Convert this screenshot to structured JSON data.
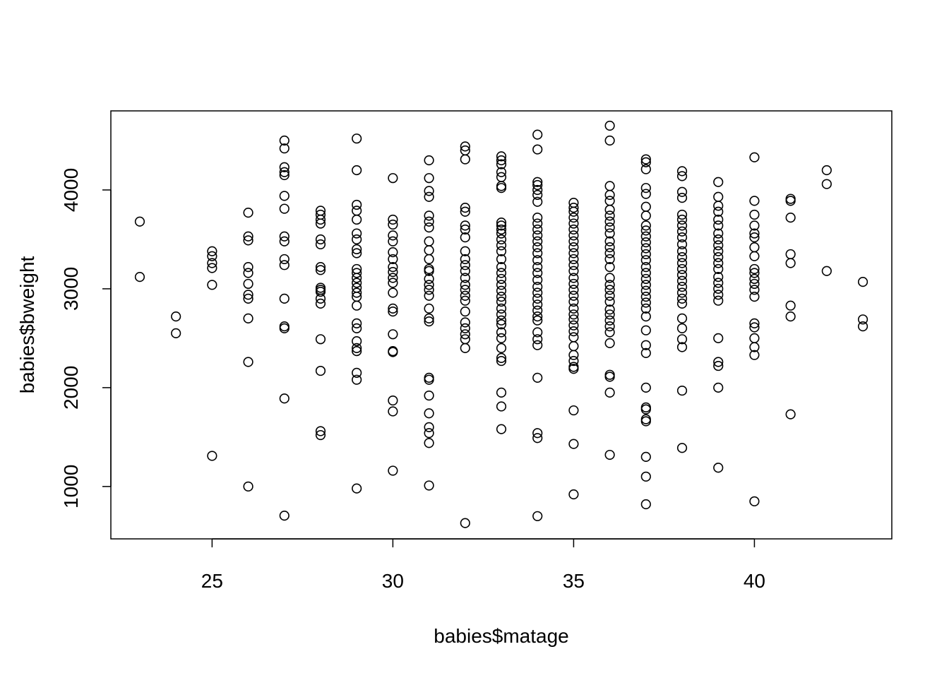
{
  "chart_data": {
    "type": "scatter",
    "title": "",
    "xlabel": "babies$matage",
    "ylabel": "babies$bweight",
    "xlim": [
      22.2,
      43.8
    ],
    "ylim": [
      470,
      4800
    ],
    "xticks": [
      25,
      30,
      35,
      40
    ],
    "yticks": [
      1000,
      2000,
      3000,
      4000
    ],
    "xtick_labels": [
      "25",
      "30",
      "35",
      "40"
    ],
    "ytick_labels": [
      "1000",
      "2000",
      "3000",
      "4000"
    ],
    "grid": false,
    "legend": "none",
    "marker": "open-circle",
    "points": [
      [
        23,
        3680
      ],
      [
        23,
        3120
      ],
      [
        24,
        2720
      ],
      [
        24,
        2550
      ],
      [
        25,
        3380
      ],
      [
        25,
        3330
      ],
      [
        25,
        3260
      ],
      [
        25,
        3210
      ],
      [
        25,
        3040
      ],
      [
        25,
        1310
      ],
      [
        26,
        3770
      ],
      [
        26,
        3530
      ],
      [
        26,
        3490
      ],
      [
        26,
        3220
      ],
      [
        26,
        3160
      ],
      [
        26,
        3050
      ],
      [
        26,
        2940
      ],
      [
        26,
        2900
      ],
      [
        26,
        2700
      ],
      [
        26,
        2260
      ],
      [
        26,
        1000
      ],
      [
        27,
        4500
      ],
      [
        27,
        4420
      ],
      [
        27,
        4230
      ],
      [
        27,
        4180
      ],
      [
        27,
        4150
      ],
      [
        27,
        3940
      ],
      [
        27,
        3810
      ],
      [
        27,
        3530
      ],
      [
        27,
        3480
      ],
      [
        27,
        3300
      ],
      [
        27,
        3240
      ],
      [
        27,
        2900
      ],
      [
        27,
        2620
      ],
      [
        27,
        2600
      ],
      [
        27,
        1890
      ],
      [
        27,
        705
      ],
      [
        28,
        3790
      ],
      [
        28,
        3750
      ],
      [
        28,
        3700
      ],
      [
        28,
        3660
      ],
      [
        28,
        3500
      ],
      [
        28,
        3450
      ],
      [
        28,
        3220
      ],
      [
        28,
        3190
      ],
      [
        28,
        3010
      ],
      [
        28,
        2990
      ],
      [
        28,
        2970
      ],
      [
        28,
        2900
      ],
      [
        28,
        2850
      ],
      [
        28,
        2490
      ],
      [
        28,
        2170
      ],
      [
        28,
        1560
      ],
      [
        28,
        1520
      ],
      [
        29,
        4520
      ],
      [
        29,
        4200
      ],
      [
        29,
        3850
      ],
      [
        29,
        3790
      ],
      [
        29,
        3700
      ],
      [
        29,
        3560
      ],
      [
        29,
        3500
      ],
      [
        29,
        3400
      ],
      [
        29,
        3360
      ],
      [
        29,
        3200
      ],
      [
        29,
        3160
      ],
      [
        29,
        3110
      ],
      [
        29,
        3060
      ],
      [
        29,
        3010
      ],
      [
        29,
        2960
      ],
      [
        29,
        2920
      ],
      [
        29,
        2830
      ],
      [
        29,
        2650
      ],
      [
        29,
        2600
      ],
      [
        29,
        2470
      ],
      [
        29,
        2400
      ],
      [
        29,
        2370
      ],
      [
        29,
        2150
      ],
      [
        29,
        2080
      ],
      [
        29,
        980
      ],
      [
        30,
        4120
      ],
      [
        30,
        3700
      ],
      [
        30,
        3650
      ],
      [
        30,
        3540
      ],
      [
        30,
        3480
      ],
      [
        30,
        3370
      ],
      [
        30,
        3300
      ],
      [
        30,
        3220
      ],
      [
        30,
        3170
      ],
      [
        30,
        3110
      ],
      [
        30,
        3060
      ],
      [
        30,
        2960
      ],
      [
        30,
        2800
      ],
      [
        30,
        2770
      ],
      [
        30,
        2540
      ],
      [
        30,
        2370
      ],
      [
        30,
        2360
      ],
      [
        30,
        1870
      ],
      [
        30,
        1760
      ],
      [
        30,
        1160
      ],
      [
        31,
        4300
      ],
      [
        31,
        4120
      ],
      [
        31,
        3990
      ],
      [
        31,
        3930
      ],
      [
        31,
        3740
      ],
      [
        31,
        3680
      ],
      [
        31,
        3620
      ],
      [
        31,
        3480
      ],
      [
        31,
        3390
      ],
      [
        31,
        3300
      ],
      [
        31,
        3200
      ],
      [
        31,
        3180
      ],
      [
        31,
        3100
      ],
      [
        31,
        3040
      ],
      [
        31,
        2990
      ],
      [
        31,
        2930
      ],
      [
        31,
        2800
      ],
      [
        31,
        2700
      ],
      [
        31,
        2670
      ],
      [
        31,
        2100
      ],
      [
        31,
        2080
      ],
      [
        31,
        1920
      ],
      [
        31,
        1740
      ],
      [
        31,
        1600
      ],
      [
        31,
        1540
      ],
      [
        31,
        1440
      ],
      [
        31,
        1010
      ],
      [
        32,
        4440
      ],
      [
        32,
        4400
      ],
      [
        32,
        4310
      ],
      [
        32,
        3820
      ],
      [
        32,
        3780
      ],
      [
        32,
        3640
      ],
      [
        32,
        3600
      ],
      [
        32,
        3520
      ],
      [
        32,
        3380
      ],
      [
        32,
        3300
      ],
      [
        32,
        3240
      ],
      [
        32,
        3180
      ],
      [
        32,
        3110
      ],
      [
        32,
        3040
      ],
      [
        32,
        2990
      ],
      [
        32,
        2930
      ],
      [
        32,
        2880
      ],
      [
        32,
        2770
      ],
      [
        32,
        2660
      ],
      [
        32,
        2600
      ],
      [
        32,
        2540
      ],
      [
        32,
        2490
      ],
      [
        32,
        2400
      ],
      [
        32,
        630
      ],
      [
        33,
        4340
      ],
      [
        33,
        4300
      ],
      [
        33,
        4260
      ],
      [
        33,
        4180
      ],
      [
        33,
        4130
      ],
      [
        33,
        4040
      ],
      [
        33,
        4020
      ],
      [
        33,
        3670
      ],
      [
        33,
        3640
      ],
      [
        33,
        3600
      ],
      [
        33,
        3560
      ],
      [
        33,
        3500
      ],
      [
        33,
        3440
      ],
      [
        33,
        3380
      ],
      [
        33,
        3300
      ],
      [
        33,
        3220
      ],
      [
        33,
        3160
      ],
      [
        33,
        3100
      ],
      [
        33,
        3040
      ],
      [
        33,
        2980
      ],
      [
        33,
        2920
      ],
      [
        33,
        2870
      ],
      [
        33,
        2800
      ],
      [
        33,
        2740
      ],
      [
        33,
        2680
      ],
      [
        33,
        2640
      ],
      [
        33,
        2560
      ],
      [
        33,
        2500
      ],
      [
        33,
        2400
      ],
      [
        33,
        2300
      ],
      [
        33,
        2270
      ],
      [
        33,
        1950
      ],
      [
        33,
        1810
      ],
      [
        33,
        1580
      ],
      [
        34,
        4560
      ],
      [
        34,
        4410
      ],
      [
        34,
        4080
      ],
      [
        34,
        4050
      ],
      [
        34,
        4000
      ],
      [
        34,
        3950
      ],
      [
        34,
        3880
      ],
      [
        34,
        3720
      ],
      [
        34,
        3660
      ],
      [
        34,
        3600
      ],
      [
        34,
        3540
      ],
      [
        34,
        3480
      ],
      [
        34,
        3420
      ],
      [
        34,
        3360
      ],
      [
        34,
        3290
      ],
      [
        34,
        3220
      ],
      [
        34,
        3160
      ],
      [
        34,
        3090
      ],
      [
        34,
        3020
      ],
      [
        34,
        2960
      ],
      [
        34,
        2900
      ],
      [
        34,
        2840
      ],
      [
        34,
        2780
      ],
      [
        34,
        2720
      ],
      [
        34,
        2680
      ],
      [
        34,
        2560
      ],
      [
        34,
        2490
      ],
      [
        34,
        2430
      ],
      [
        34,
        2100
      ],
      [
        34,
        1540
      ],
      [
        34,
        1490
      ],
      [
        34,
        700
      ],
      [
        35,
        3870
      ],
      [
        35,
        3820
      ],
      [
        35,
        3780
      ],
      [
        35,
        3720
      ],
      [
        35,
        3660
      ],
      [
        35,
        3600
      ],
      [
        35,
        3540
      ],
      [
        35,
        3480
      ],
      [
        35,
        3420
      ],
      [
        35,
        3360
      ],
      [
        35,
        3300
      ],
      [
        35,
        3240
      ],
      [
        35,
        3180
      ],
      [
        35,
        3110
      ],
      [
        35,
        3050
      ],
      [
        35,
        2990
      ],
      [
        35,
        2930
      ],
      [
        35,
        2870
      ],
      [
        35,
        2800
      ],
      [
        35,
        2740
      ],
      [
        35,
        2690
      ],
      [
        35,
        2630
      ],
      [
        35,
        2570
      ],
      [
        35,
        2510
      ],
      [
        35,
        2420
      ],
      [
        35,
        2330
      ],
      [
        35,
        2270
      ],
      [
        35,
        2210
      ],
      [
        35,
        2190
      ],
      [
        35,
        1770
      ],
      [
        35,
        1430
      ],
      [
        35,
        920
      ],
      [
        36,
        4650
      ],
      [
        36,
        4500
      ],
      [
        36,
        4040
      ],
      [
        36,
        3950
      ],
      [
        36,
        3890
      ],
      [
        36,
        3800
      ],
      [
        36,
        3740
      ],
      [
        36,
        3680
      ],
      [
        36,
        3620
      ],
      [
        36,
        3560
      ],
      [
        36,
        3480
      ],
      [
        36,
        3420
      ],
      [
        36,
        3360
      ],
      [
        36,
        3300
      ],
      [
        36,
        3220
      ],
      [
        36,
        3110
      ],
      [
        36,
        3040
      ],
      [
        36,
        2990
      ],
      [
        36,
        2930
      ],
      [
        36,
        2870
      ],
      [
        36,
        2790
      ],
      [
        36,
        2740
      ],
      [
        36,
        2680
      ],
      [
        36,
        2620
      ],
      [
        36,
        2560
      ],
      [
        36,
        2450
      ],
      [
        36,
        2130
      ],
      [
        36,
        2110
      ],
      [
        36,
        1950
      ],
      [
        36,
        1320
      ],
      [
        37,
        4310
      ],
      [
        37,
        4280
      ],
      [
        37,
        4210
      ],
      [
        37,
        4020
      ],
      [
        37,
        3960
      ],
      [
        37,
        3830
      ],
      [
        37,
        3740
      ],
      [
        37,
        3640
      ],
      [
        37,
        3590
      ],
      [
        37,
        3530
      ],
      [
        37,
        3470
      ],
      [
        37,
        3410
      ],
      [
        37,
        3350
      ],
      [
        37,
        3290
      ],
      [
        37,
        3220
      ],
      [
        37,
        3160
      ],
      [
        37,
        3100
      ],
      [
        37,
        3040
      ],
      [
        37,
        2980
      ],
      [
        37,
        2920
      ],
      [
        37,
        2860
      ],
      [
        37,
        2800
      ],
      [
        37,
        2720
      ],
      [
        37,
        2580
      ],
      [
        37,
        2430
      ],
      [
        37,
        2350
      ],
      [
        37,
        2000
      ],
      [
        37,
        1800
      ],
      [
        37,
        1780
      ],
      [
        37,
        1680
      ],
      [
        37,
        1660
      ],
      [
        37,
        1300
      ],
      [
        37,
        1100
      ],
      [
        37,
        820
      ],
      [
        38,
        4190
      ],
      [
        38,
        4140
      ],
      [
        38,
        3980
      ],
      [
        38,
        3920
      ],
      [
        38,
        3750
      ],
      [
        38,
        3700
      ],
      [
        38,
        3640
      ],
      [
        38,
        3580
      ],
      [
        38,
        3520
      ],
      [
        38,
        3450
      ],
      [
        38,
        3380
      ],
      [
        38,
        3320
      ],
      [
        38,
        3260
      ],
      [
        38,
        3200
      ],
      [
        38,
        3140
      ],
      [
        38,
        3080
      ],
      [
        38,
        3020
      ],
      [
        38,
        2960
      ],
      [
        38,
        2900
      ],
      [
        38,
        2850
      ],
      [
        38,
        2700
      ],
      [
        38,
        2600
      ],
      [
        38,
        2490
      ],
      [
        38,
        2410
      ],
      [
        38,
        1970
      ],
      [
        38,
        1390
      ],
      [
        39,
        4080
      ],
      [
        39,
        3930
      ],
      [
        39,
        3840
      ],
      [
        39,
        3780
      ],
      [
        39,
        3700
      ],
      [
        39,
        3640
      ],
      [
        39,
        3560
      ],
      [
        39,
        3500
      ],
      [
        39,
        3440
      ],
      [
        39,
        3380
      ],
      [
        39,
        3320
      ],
      [
        39,
        3260
      ],
      [
        39,
        3200
      ],
      [
        39,
        3120
      ],
      [
        39,
        3060
      ],
      [
        39,
        3000
      ],
      [
        39,
        2940
      ],
      [
        39,
        2880
      ],
      [
        39,
        2500
      ],
      [
        39,
        2260
      ],
      [
        39,
        2220
      ],
      [
        39,
        2000
      ],
      [
        39,
        1190
      ],
      [
        40,
        4330
      ],
      [
        40,
        3890
      ],
      [
        40,
        3750
      ],
      [
        40,
        3640
      ],
      [
        40,
        3560
      ],
      [
        40,
        3520
      ],
      [
        40,
        3420
      ],
      [
        40,
        3330
      ],
      [
        40,
        3200
      ],
      [
        40,
        3160
      ],
      [
        40,
        3100
      ],
      [
        40,
        3050
      ],
      [
        40,
        2990
      ],
      [
        40,
        2920
      ],
      [
        40,
        2650
      ],
      [
        40,
        2610
      ],
      [
        40,
        2500
      ],
      [
        40,
        2410
      ],
      [
        40,
        2330
      ],
      [
        40,
        850
      ],
      [
        41,
        3910
      ],
      [
        41,
        3890
      ],
      [
        41,
        3720
      ],
      [
        41,
        3350
      ],
      [
        41,
        3260
      ],
      [
        41,
        2830
      ],
      [
        41,
        2720
      ],
      [
        41,
        1730
      ],
      [
        42,
        4200
      ],
      [
        42,
        4060
      ],
      [
        42,
        3180
      ],
      [
        43,
        3070
      ],
      [
        43,
        2690
      ],
      [
        43,
        2620
      ]
    ]
  }
}
